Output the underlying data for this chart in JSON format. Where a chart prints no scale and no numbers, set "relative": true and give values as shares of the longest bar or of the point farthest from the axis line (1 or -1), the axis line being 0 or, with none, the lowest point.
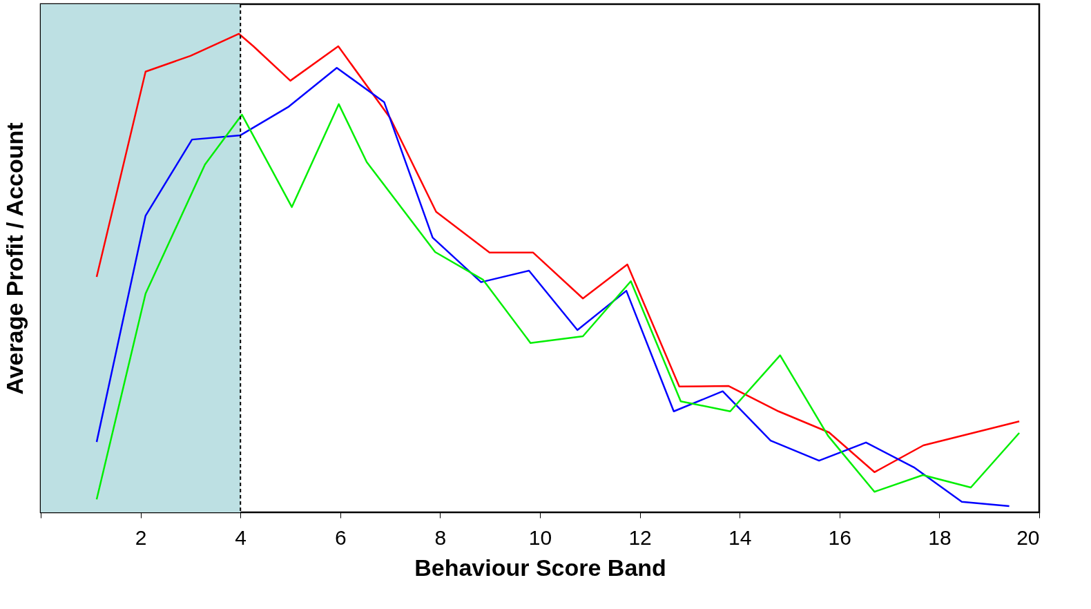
{
  "chart_data": {
    "type": "line",
    "relative": true,
    "xlabel": "Behaviour Score Band",
    "ylabel": "Average Profit / Account",
    "xlim": [
      0,
      20
    ],
    "xticks": [
      {
        "value": 0,
        "label": null
      },
      2,
      4,
      6,
      8,
      10,
      12,
      14,
      16,
      18,
      20
    ],
    "grid": false,
    "line_style": "solid",
    "marker": "none",
    "bands": [
      {
        "axis": "x",
        "from": 0,
        "to": 4,
        "color": "#bde0e3"
      }
    ],
    "ref_lines": [
      {
        "axis": "x",
        "value": 4,
        "color": "#000000",
        "line_style": "dashed"
      }
    ],
    "series": [
      {
        "color": "#ff0000",
        "x": [
          1.12,
          2.1,
          3.0,
          3.97,
          4.26,
          5.0,
          5.96,
          7.0,
          7.92,
          8.99,
          9.86,
          10.86,
          11.75,
          12.79,
          13.78,
          14.78,
          15.79,
          16.7,
          17.68,
          19.6
        ],
        "values": [
          0.492,
          0.921,
          0.954,
          1.0,
          0.974,
          0.902,
          0.974,
          0.824,
          0.628,
          0.543,
          0.543,
          0.447,
          0.518,
          0.263,
          0.264,
          0.211,
          0.167,
          0.084,
          0.14,
          0.19
        ]
      },
      {
        "color": "#0000ff",
        "x": [
          1.12,
          2.1,
          3.03,
          4.0,
          4.97,
          5.93,
          6.88,
          7.85,
          8.82,
          9.78,
          10.75,
          11.73,
          12.68,
          13.66,
          14.62,
          15.59,
          16.53,
          17.49,
          18.45,
          19.4
        ],
        "values": [
          0.147,
          0.62,
          0.779,
          0.788,
          0.848,
          0.929,
          0.857,
          0.574,
          0.481,
          0.505,
          0.381,
          0.463,
          0.211,
          0.253,
          0.15,
          0.108,
          0.146,
          0.094,
          0.022,
          0.013
        ]
      },
      {
        "color": "#00ee00",
        "x": [
          1.12,
          2.1,
          3.29,
          4.03,
          5.03,
          5.97,
          6.53,
          7.9,
          8.86,
          9.81,
          10.86,
          11.82,
          12.82,
          13.81,
          14.81,
          15.77,
          16.7,
          17.67,
          18.63,
          19.6
        ],
        "values": [
          0.027,
          0.457,
          0.727,
          0.831,
          0.638,
          0.853,
          0.732,
          0.544,
          0.486,
          0.354,
          0.368,
          0.483,
          0.232,
          0.211,
          0.328,
          0.16,
          0.043,
          0.078,
          0.052,
          0.166
        ]
      }
    ]
  }
}
